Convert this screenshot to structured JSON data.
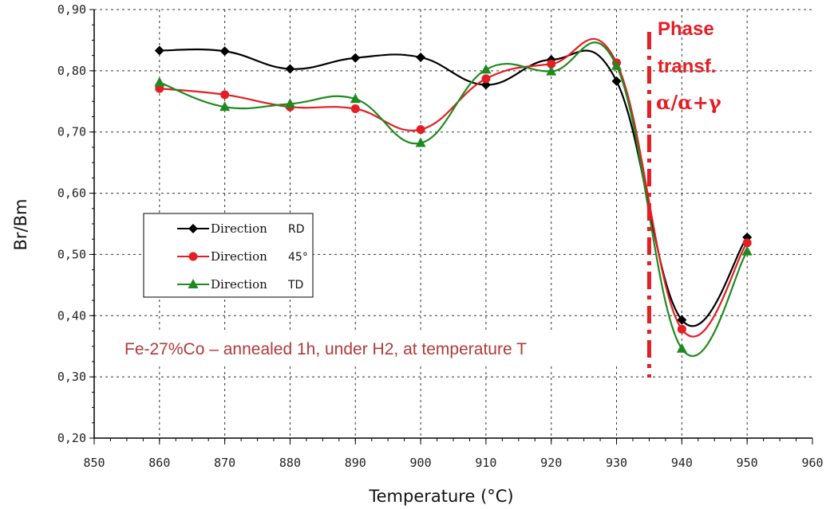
{
  "chart_data": {
    "type": "line",
    "title": "",
    "xlabel": "Temperature (°C)",
    "ylabel": "Br/Bm",
    "xlim": [
      850,
      960
    ],
    "ylim": [
      0.2,
      0.9
    ],
    "x_ticks": [
      "850",
      "860",
      "870",
      "880",
      "890",
      "900",
      "910",
      "920",
      "930",
      "940",
      "950",
      "960"
    ],
    "y_ticks": [
      "0,20",
      "0,30",
      "0,40",
      "0,50",
      "0,60",
      "0,70",
      "0,80",
      "0,90"
    ],
    "grid": true,
    "legend_position": "left",
    "x": [
      860,
      870,
      880,
      890,
      900,
      910,
      920,
      930,
      940,
      950
    ],
    "series": [
      {
        "name": "Direction",
        "code": "RD",
        "color": "#000000",
        "marker": "diamond",
        "values": [
          0.833,
          0.832,
          0.803,
          0.821,
          0.822,
          0.777,
          0.818,
          0.783,
          0.393,
          0.528
        ]
      },
      {
        "name": "Direction",
        "code": "45°",
        "color": "#e31e24",
        "marker": "circle",
        "values": [
          0.771,
          0.761,
          0.741,
          0.738,
          0.704,
          0.787,
          0.811,
          0.813,
          0.378,
          0.519
        ]
      },
      {
        "name": "Direction",
        "code": "TD",
        "color": "#1f8a1f",
        "marker": "triangle",
        "values": [
          0.781,
          0.741,
          0.746,
          0.754,
          0.682,
          0.802,
          0.799,
          0.808,
          0.346,
          0.505
        ]
      }
    ],
    "annotations": {
      "sample": "Fe-27%Co – annealed 1h, under H2, at temperature T",
      "phase_line1": "Phase",
      "phase_line2": "transf.",
      "phase_line3": "α/α+γ",
      "phase_x": 935
    }
  }
}
